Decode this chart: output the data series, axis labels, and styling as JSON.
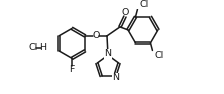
{
  "bg_color": "#ffffff",
  "line_color": "#1a1a1a",
  "line_width": 1.1,
  "font_size": 6.8,
  "fig_width": 2.24,
  "fig_height": 0.94,
  "xlim": [
    0,
    10
  ],
  "ylim": [
    0,
    4.2
  ]
}
